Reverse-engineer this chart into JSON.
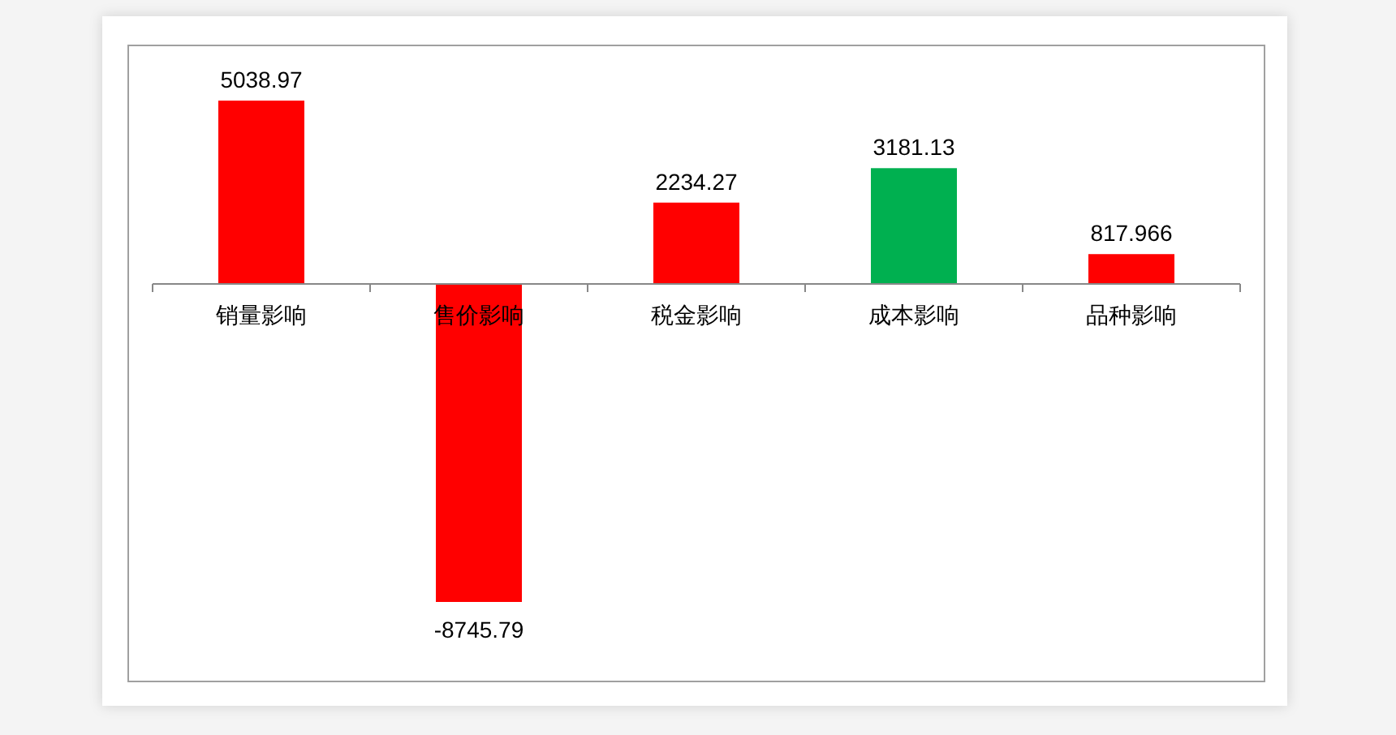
{
  "chart_data": {
    "type": "bar",
    "categories": [
      "销量影响",
      "售价影响",
      "税金影响",
      "成本影响",
      "品种影响"
    ],
    "values": [
      5038.97,
      -8745.79,
      2234.27,
      3181.13,
      817.966
    ],
    "colors": [
      "#ff0000",
      "#ff0000",
      "#ff0000",
      "#00b050",
      "#ff0000"
    ],
    "data_labels": true
  }
}
